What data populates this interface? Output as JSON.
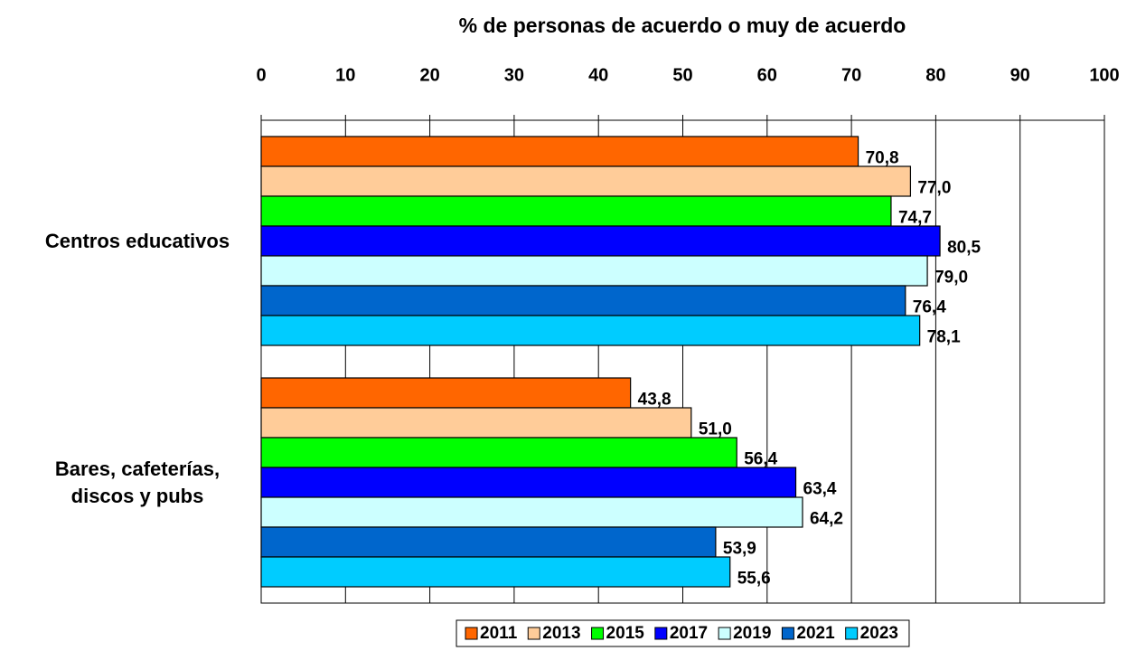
{
  "chart_data": {
    "type": "hbar",
    "title": "% de personas de acuerdo o muy de acuerdo",
    "categories": [
      "Centros educativos",
      "Bares, cafeterías, discos y pubs"
    ],
    "series": [
      {
        "name": "2011",
        "color": "#ff6600",
        "values": [
          70.8,
          43.8
        ],
        "value_labels": [
          "70,8",
          "43,8"
        ]
      },
      {
        "name": "2013",
        "color": "#ffcc99",
        "values": [
          77.0,
          51.0
        ],
        "value_labels": [
          "77,0",
          "51,0"
        ]
      },
      {
        "name": "2015",
        "color": "#00ff00",
        "values": [
          74.7,
          56.4
        ],
        "value_labels": [
          "74,7",
          "56,4"
        ]
      },
      {
        "name": "2017",
        "color": "#0000ff",
        "values": [
          80.5,
          63.4
        ],
        "value_labels": [
          "80,5",
          "63,4"
        ]
      },
      {
        "name": "2019",
        "color": "#ccffff",
        "values": [
          79.0,
          64.2
        ],
        "value_labels": [
          "79,0",
          "64,2"
        ]
      },
      {
        "name": "2021",
        "color": "#0066cc",
        "values": [
          76.4,
          53.9
        ],
        "value_labels": [
          "76,4",
          "53,9"
        ]
      },
      {
        "name": "2023",
        "color": "#00ccff",
        "values": [
          78.1,
          55.6
        ],
        "value_labels": [
          "78,1",
          "55,6"
        ]
      }
    ],
    "xlim": [
      0,
      100
    ],
    "xticks": [
      0,
      10,
      20,
      30,
      40,
      50,
      60,
      70,
      80,
      90,
      100
    ],
    "grid": true,
    "legend": "bottom"
  }
}
